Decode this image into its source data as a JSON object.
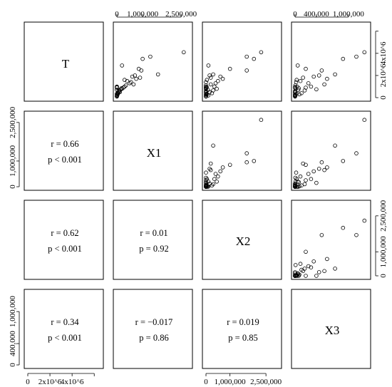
{
  "variables": [
    "T",
    "X1",
    "X2",
    "X3"
  ],
  "ticks": {
    "T": {
      "values": [
        0,
        2000000,
        4000000,
        6000000
      ],
      "labels": [
        "0",
        "2x10^6",
        "4x10^6",
        ""
      ]
    },
    "X1": {
      "values": [
        0,
        1000000,
        2500000
      ],
      "labels": [
        "0",
        "1,000,000",
        "2,500,000"
      ]
    },
    "X2": {
      "values": [
        0,
        1000000,
        2500000
      ],
      "labels": [
        "0",
        "1,000,000",
        "2,500,000"
      ]
    },
    "X3": {
      "values": [
        0,
        400000,
        1000000
      ],
      "labels": [
        "0",
        "400,000",
        "1,000,000"
      ]
    }
  },
  "correlations": [
    {
      "pair": [
        "T",
        "X1"
      ],
      "r": "r = 0.66",
      "p": "p < 0.001"
    },
    {
      "pair": [
        "T",
        "X2"
      ],
      "r": "r = 0.62",
      "p": "p < 0.001"
    },
    {
      "pair": [
        "X1",
        "X2"
      ],
      "r": "r = 0.01",
      "p": "p = 0.92"
    },
    {
      "pair": [
        "T",
        "X3"
      ],
      "r": "r = 0.34",
      "p": "p < 0.001"
    },
    {
      "pair": [
        "X1",
        "X3"
      ],
      "r": "r = −0.017",
      "p": "p = 0.86"
    },
    {
      "pair": [
        "X2",
        "X3"
      ],
      "r": "r = 0.019",
      "p": "p = 0.85"
    }
  ],
  "chart_data": {
    "type": "scatter",
    "layout": "pairs-matrix",
    "grid": false,
    "ranges": {
      "T": [
        0,
        6500000
      ],
      "X1": [
        0,
        2800000
      ],
      "X2": [
        0,
        3000000
      ],
      "X3": [
        0,
        1350000
      ]
    },
    "observations": [
      {
        "T": 3500000,
        "X1": 1000000,
        "X2": 2000000,
        "X3": 900000
      },
      {
        "T": 4100000,
        "X1": 2600000,
        "X2": 2300000,
        "X3": 1300000
      },
      {
        "T": 3700000,
        "X1": 1300000,
        "X2": 1700000,
        "X3": 1150000
      },
      {
        "T": 2100000,
        "X1": 1600000,
        "X2": 300000,
        "X3": 750000
      },
      {
        "T": 2450000,
        "X1": 950000,
        "X2": 1700000,
        "X3": 500000
      },
      {
        "T": 2600000,
        "X1": 850000,
        "X2": 1000000,
        "X3": 200000
      },
      {
        "T": 2900000,
        "X1": 200000,
        "X2": 100000,
        "X3": 50000
      },
      {
        "T": 2000000,
        "X1": 700000,
        "X2": 150000,
        "X3": 450000
      },
      {
        "T": 1900000,
        "X1": 600000,
        "X2": 600000,
        "X3": 350000
      },
      {
        "T": 1800000,
        "X1": 900000,
        "X2": 200000,
        "X3": 150000
      },
      {
        "T": 1700000,
        "X1": 750000,
        "X2": 700000,
        "X3": 600000
      },
      {
        "T": 1600000,
        "X1": 300000,
        "X2": 40000,
        "X3": 30000
      },
      {
        "T": 1500000,
        "X1": 400000,
        "X2": 500000,
        "X3": 100000
      },
      {
        "T": 1400000,
        "X1": 550000,
        "X2": 0,
        "X3": 20000
      },
      {
        "T": 1300000,
        "X1": 500000,
        "X2": 400000,
        "X3": 250000
      },
      {
        "T": 1200000,
        "X1": 650000,
        "X2": 200000,
        "X3": 550000
      },
      {
        "T": 1100000,
        "X1": 350000,
        "X2": 0,
        "X3": 5000
      },
      {
        "T": 1000000,
        "X1": 300000,
        "X2": 350000,
        "X3": 300000
      },
      {
        "T": 900000,
        "X1": 250000,
        "X2": 0,
        "X3": 200000
      },
      {
        "T": 800000,
        "X1": 200000,
        "X2": 450000,
        "X3": 10000
      },
      {
        "T": 750000,
        "X1": 150000,
        "X2": 0,
        "X3": 400000
      },
      {
        "T": 650000,
        "X1": 100000,
        "X2": 300000,
        "X3": 180000
      },
      {
        "T": 500000,
        "X1": 80000,
        "X2": 0,
        "X3": 0
      },
      {
        "T": 400000,
        "X1": 50000,
        "X2": 250000,
        "X3": 120000
      },
      {
        "T": 300000,
        "X1": 30000,
        "X2": 0,
        "X3": 0
      },
      {
        "T": 200000,
        "X1": 10000,
        "X2": 100000,
        "X3": 0
      },
      {
        "T": 100000,
        "X1": 0,
        "X2": 0,
        "X3": 0
      },
      {
        "T": 150000,
        "X1": 0,
        "X2": 0,
        "X3": 0
      },
      {
        "T": 300000,
        "X1": 20000,
        "X2": 50000,
        "X3": 80000
      },
      {
        "T": 450000,
        "X1": 40000,
        "X2": 0,
        "X3": 0
      },
      {
        "T": 350000,
        "X1": 0,
        "X2": 20000,
        "X3": 30000
      },
      {
        "T": 600000,
        "X1": 60000,
        "X2": 0,
        "X3": 0
      },
      {
        "T": 700000,
        "X1": 0,
        "X2": 80000,
        "X3": 60000
      },
      {
        "T": 250000,
        "X1": 0,
        "X2": 0,
        "X3": 0
      },
      {
        "T": 500000,
        "X1": 120000,
        "X2": 150000,
        "X3": 0
      },
      {
        "T": 850000,
        "X1": 180000,
        "X2": 0,
        "X3": 70000
      },
      {
        "T": 1000000,
        "X1": 0,
        "X2": 0,
        "X3": 40000
      },
      {
        "T": 120000,
        "X1": 0,
        "X2": 0,
        "X3": 0
      },
      {
        "T": 900000,
        "X1": 0,
        "X2": 0,
        "X3": 0
      },
      {
        "T": 950000,
        "X1": 0,
        "X2": 30000,
        "X3": 0
      }
    ]
  }
}
